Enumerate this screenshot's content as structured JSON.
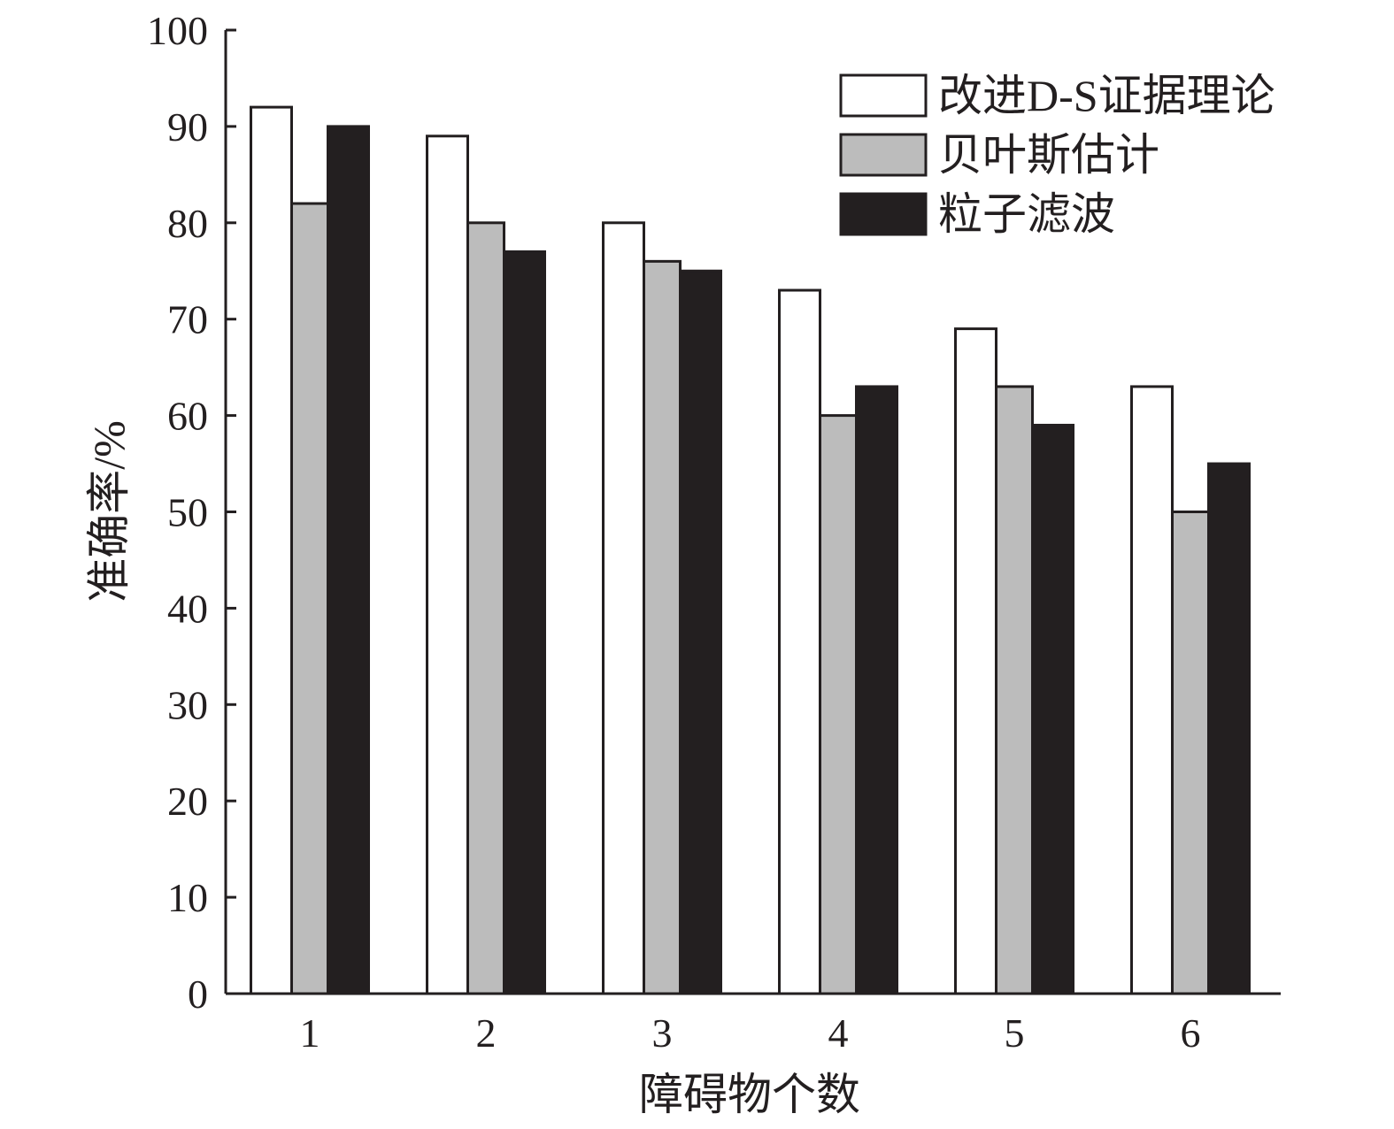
{
  "chart_data": {
    "type": "bar",
    "title": "",
    "xlabel": "障碍物个数",
    "ylabel": "准确率/%",
    "categories": [
      "1",
      "2",
      "3",
      "4",
      "5",
      "6"
    ],
    "ylim": [
      0,
      100
    ],
    "yticks": [
      "0",
      "10",
      "20",
      "30",
      "40",
      "50",
      "60",
      "70",
      "80",
      "90",
      "100"
    ],
    "grid": false,
    "legend_position": "top-right",
    "series": [
      {
        "name": "改进D-S证据理论",
        "color": "#ffffff",
        "values": [
          92,
          89,
          80,
          73,
          69,
          63
        ]
      },
      {
        "name": "贝叶斯估计",
        "color": "#bcbcbc",
        "values": [
          82,
          80,
          76,
          60,
          63,
          50
        ]
      },
      {
        "name": "粒子滤波",
        "color": "#231f20",
        "values": [
          90,
          77,
          75,
          63,
          59,
          55
        ]
      }
    ]
  }
}
